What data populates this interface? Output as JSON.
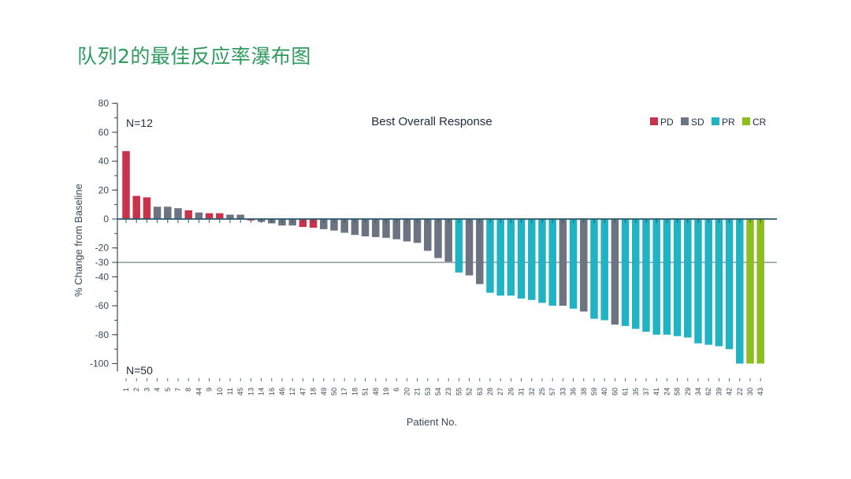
{
  "slide": {
    "title": "队列2的最佳反应率瀑布图"
  },
  "chart_data": {
    "type": "bar",
    "title": "Best Overall Response",
    "xlabel": "Patient No.",
    "ylabel": "% Change from Baseline",
    "ylim": [
      -100,
      80
    ],
    "yticks": [
      80,
      60,
      40,
      20,
      0,
      -20,
      -30,
      -40,
      -60,
      -80,
      -100
    ],
    "reference_line": -30,
    "annotations": {
      "top": "N=12",
      "bottom": "N=50"
    },
    "legend": [
      {
        "key": "PD",
        "label": "PD",
        "color": "#c8334b"
      },
      {
        "key": "SD",
        "label": "SD",
        "color": "#6b7480"
      },
      {
        "key": "PR",
        "label": "PR",
        "color": "#1fb3c4"
      },
      {
        "key": "CR",
        "label": "CR",
        "color": "#8dbd1f"
      }
    ],
    "legend_position": "top-right",
    "categories": [
      "1",
      "2",
      "3",
      "4",
      "5",
      "7",
      "8",
      "44",
      "9",
      "10",
      "11",
      "45",
      "13",
      "14",
      "16",
      "46",
      "12",
      "47",
      "18",
      "49",
      "50",
      "17",
      "18",
      "51",
      "48",
      "19",
      "6",
      "20",
      "21",
      "53",
      "54",
      "23",
      "55",
      "52",
      "63",
      "28",
      "27",
      "26",
      "31",
      "32",
      "25",
      "57",
      "33",
      "36",
      "38",
      "59",
      "40",
      "60",
      "61",
      "35",
      "37",
      "41",
      "24",
      "58",
      "29",
      "34",
      "62",
      "39",
      "42",
      "22",
      "30",
      "43"
    ],
    "values": [
      47,
      16,
      15,
      8.5,
      8.5,
      7.5,
      6,
      4.5,
      4,
      4,
      3,
      3,
      -1,
      -2,
      -3,
      -4.5,
      -4.5,
      -5.5,
      -6,
      -7,
      -8,
      -9.5,
      -11,
      -12,
      -12.5,
      -13,
      -14,
      -15.5,
      -16.5,
      -22,
      -27,
      -29.5,
      -37,
      -39,
      -45,
      -51,
      -53,
      -53,
      -55,
      -56,
      -58,
      -60,
      -60,
      -62,
      -64,
      -69,
      -70,
      -73,
      -74,
      -76,
      -78,
      -80,
      -80,
      -81,
      -82,
      -86,
      -87,
      -88,
      -90,
      -100,
      -100,
      -100
    ],
    "response": [
      "PD",
      "PD",
      "PD",
      "SD",
      "SD",
      "SD",
      "PD",
      "SD",
      "PD",
      "PD",
      "SD",
      "SD",
      "PD",
      "SD",
      "SD",
      "SD",
      "SD",
      "PD",
      "PD",
      "SD",
      "SD",
      "SD",
      "SD",
      "SD",
      "SD",
      "SD",
      "SD",
      "SD",
      "SD",
      "SD",
      "SD",
      "SD",
      "PR",
      "SD",
      "SD",
      "PR",
      "PR",
      "PR",
      "PR",
      "PR",
      "PR",
      "PR",
      "SD",
      "PR",
      "SD",
      "PR",
      "PR",
      "SD",
      "PR",
      "PR",
      "PR",
      "PR",
      "PR",
      "PR",
      "PR",
      "PR",
      "PR",
      "PR",
      "PR",
      "PR",
      "CR",
      "CR"
    ]
  }
}
